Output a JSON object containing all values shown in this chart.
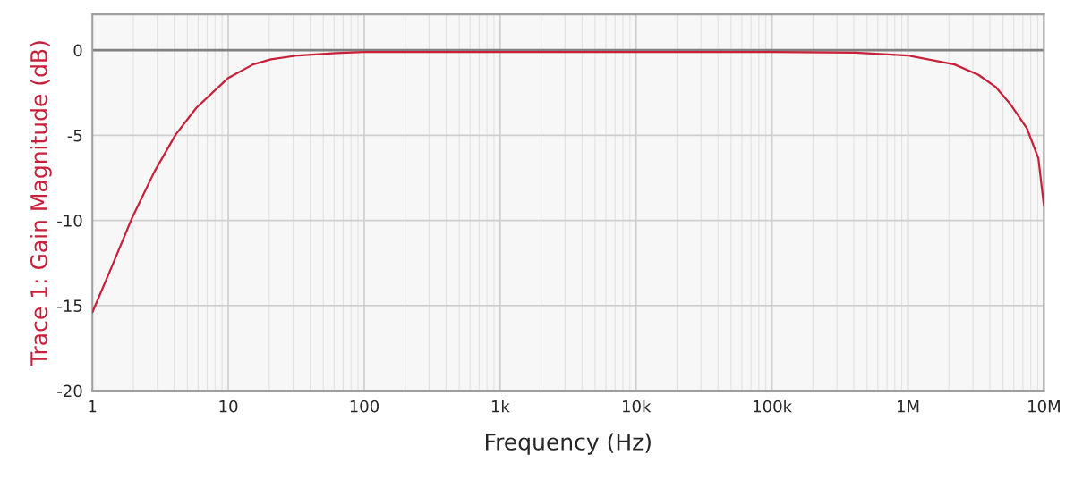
{
  "chart_data": {
    "type": "line",
    "xlabel": "Frequency (Hz)",
    "ylabel": "Trace 1: Gain Magnitude (dB)",
    "log": "x",
    "x": [
      1,
      1.4,
      1.96,
      2.86,
      4.1,
      5.83,
      10,
      15.2,
      20.6,
      32.6,
      62,
      100,
      1000,
      10000,
      100000,
      409000,
      1000000,
      2200000,
      3300000,
      4400000,
      5700000,
      7500000,
      9100000,
      10000000
    ],
    "series": [
      {
        "color": "#c8203a",
        "values": [
          -15.4,
          -12.65,
          -9.85,
          -7.14,
          -4.96,
          -3.38,
          -1.63,
          -0.84,
          -0.54,
          -0.31,
          -0.17,
          -0.1,
          -0.1,
          -0.1,
          -0.1,
          -0.14,
          -0.31,
          -0.84,
          -1.45,
          -2.15,
          -3.2,
          -4.6,
          -6.35,
          -9.15
        ]
      }
    ],
    "xlim": [
      1,
      10000000
    ],
    "xticks": [
      1,
      10,
      100,
      {
        "value": 1000,
        "label": "1k"
      },
      {
        "value": 10000,
        "label": "10k"
      },
      {
        "value": 100000,
        "label": "100k"
      },
      {
        "value": 1000000,
        "label": "1M"
      },
      {
        "value": 10000000,
        "label": "10M"
      }
    ],
    "ylim": [
      -20,
      2.1
    ],
    "yticks": [
      -20,
      -15,
      -10,
      -5,
      0
    ],
    "ref_lines": [
      {
        "axis": "y",
        "value": 0,
        "color": "#808080"
      }
    ],
    "grid": true,
    "marker": "none",
    "line_style": "solid",
    "legend": false
  }
}
